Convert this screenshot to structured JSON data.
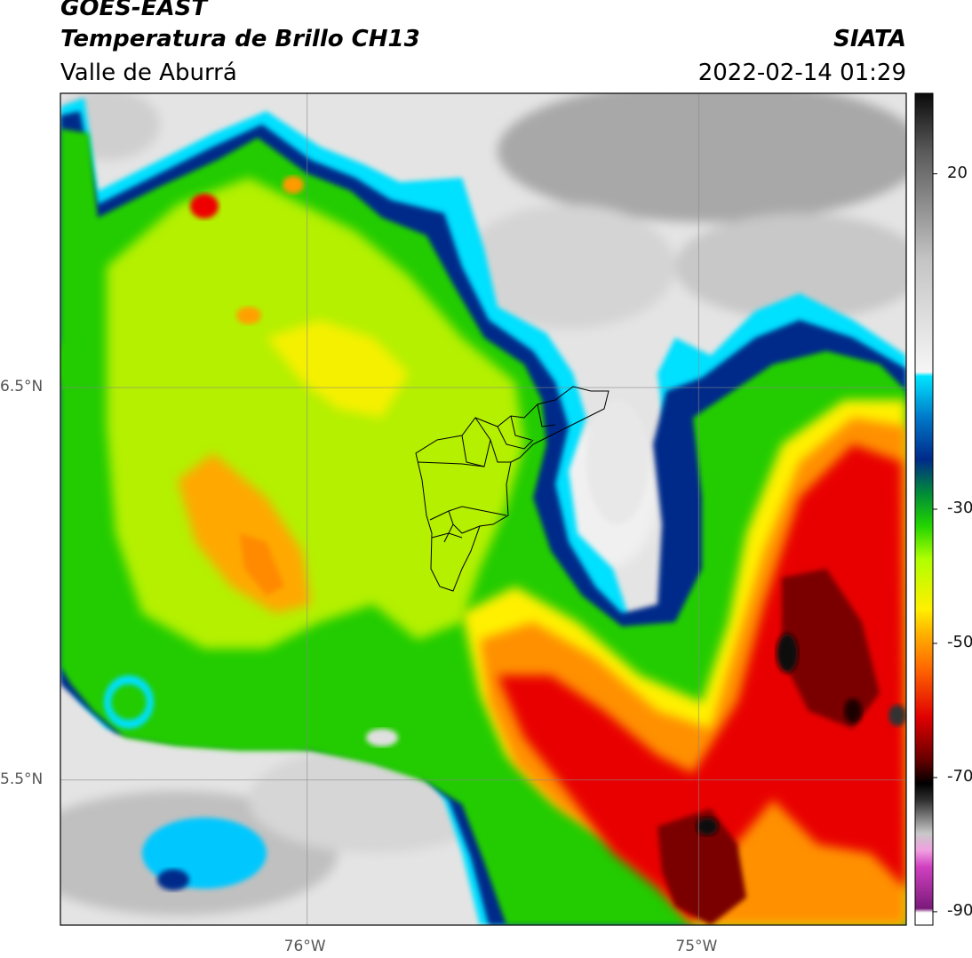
{
  "header": {
    "satellite": "GOES-EAST",
    "product": "Temperatura de Brillo CH13",
    "region": "Valle de Aburrá",
    "agency": "SIATA",
    "datetime": "2022-02-14 01:29"
  },
  "map": {
    "lon_range": [
      -76.63,
      -74.47
    ],
    "lat_range": [
      5.13,
      7.25
    ],
    "lon_ticks": [
      {
        "value": -76,
        "label": "76°W"
      },
      {
        "value": -75,
        "label": "75°W"
      }
    ],
    "lat_ticks": [
      {
        "value": 6.5,
        "label": "6.5°N"
      },
      {
        "value": 5.5,
        "label": "5.5°N"
      }
    ],
    "gridlines": true
  },
  "colorbar": {
    "unit_hint": "brightness temperature (°C)",
    "range": [
      -92,
      32
    ],
    "ticks": [
      {
        "value": 20,
        "label": "20"
      },
      {
        "value": -30,
        "label": "-30"
      },
      {
        "value": -50,
        "label": "-50"
      },
      {
        "value": -70,
        "label": "-70"
      },
      {
        "value": -90,
        "label": "-90"
      }
    ],
    "colors": {
      "warm_gray": "#e6e6e6",
      "cyan": "#00e5ff",
      "navy": "#002a8a",
      "green": "#22d400",
      "yellow": "#fff000",
      "orange": "#ff8c00",
      "red": "#e00000",
      "black": "#0a0000",
      "magenta": "#d030c0"
    }
  }
}
